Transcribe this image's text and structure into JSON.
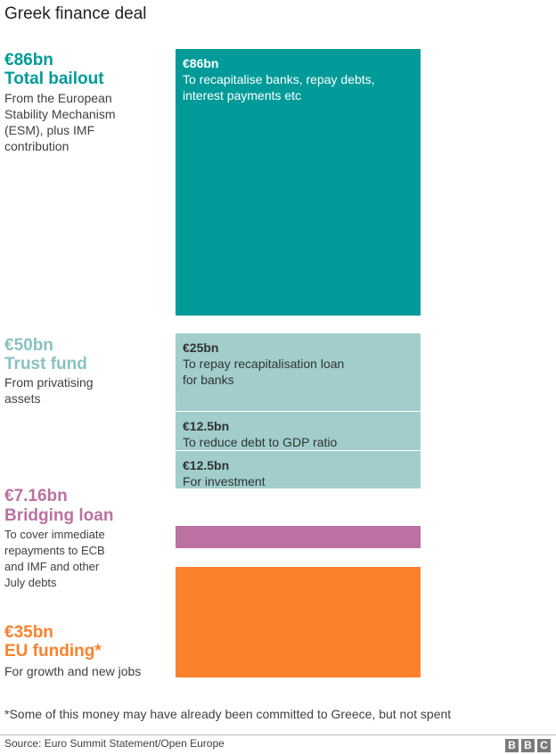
{
  "title": "Greek finance deal",
  "colors": {
    "bailout": "#009b99",
    "trust": "#a1cdcd",
    "bridging": "#bb71a1",
    "eu": "#fb812b"
  },
  "sections": {
    "bailout": {
      "amount": "€86bn",
      "name": "Total bailout",
      "desc_lines": [
        "From the European",
        "Stability Mechanism",
        "(ESM), plus IMF",
        "contribution"
      ]
    },
    "trust": {
      "amount": "€50bn",
      "name": "Trust fund",
      "desc_lines": [
        "From privatising",
        "assets"
      ]
    },
    "bridging": {
      "amount": "€7.16bn",
      "name": "Bridging loan",
      "desc_lines": [
        "To cover immediate",
        "repayments to ECB",
        "and IMF and other",
        "July debts"
      ]
    },
    "eu": {
      "amount": "€35bn",
      "name": "EU funding*",
      "desc_lines": [
        "For growth and new jobs"
      ]
    }
  },
  "chart_data": {
    "type": "bar",
    "categories": [
      "Total bailout",
      "Trust fund",
      "Bridging loan",
      "EU funding*"
    ],
    "values": [
      86,
      50,
      7.16,
      35
    ],
    "unit": "€bn",
    "segments": {
      "bailout": [
        {
          "amount": "€86bn",
          "lines": [
            "To recapitalise banks, repay debts,",
            "interest payments etc"
          ],
          "value": 86
        }
      ],
      "trust": [
        {
          "amount": "€25bn",
          "lines": [
            "To repay recapitalisation loan",
            "for banks"
          ],
          "value": 25
        },
        {
          "amount": "€12.5bn",
          "lines": [
            "To reduce debt to GDP ratio"
          ],
          "value": 12.5
        },
        {
          "amount": "€12.5bn",
          "lines": [
            "For investment"
          ],
          "value": 12.5
        }
      ]
    }
  },
  "footnote": "*Some of this money may have already been committed to Greece, but not spent",
  "source": "Source: Euro Summit Statement/Open Europe",
  "logo": [
    "B",
    "B",
    "C"
  ]
}
